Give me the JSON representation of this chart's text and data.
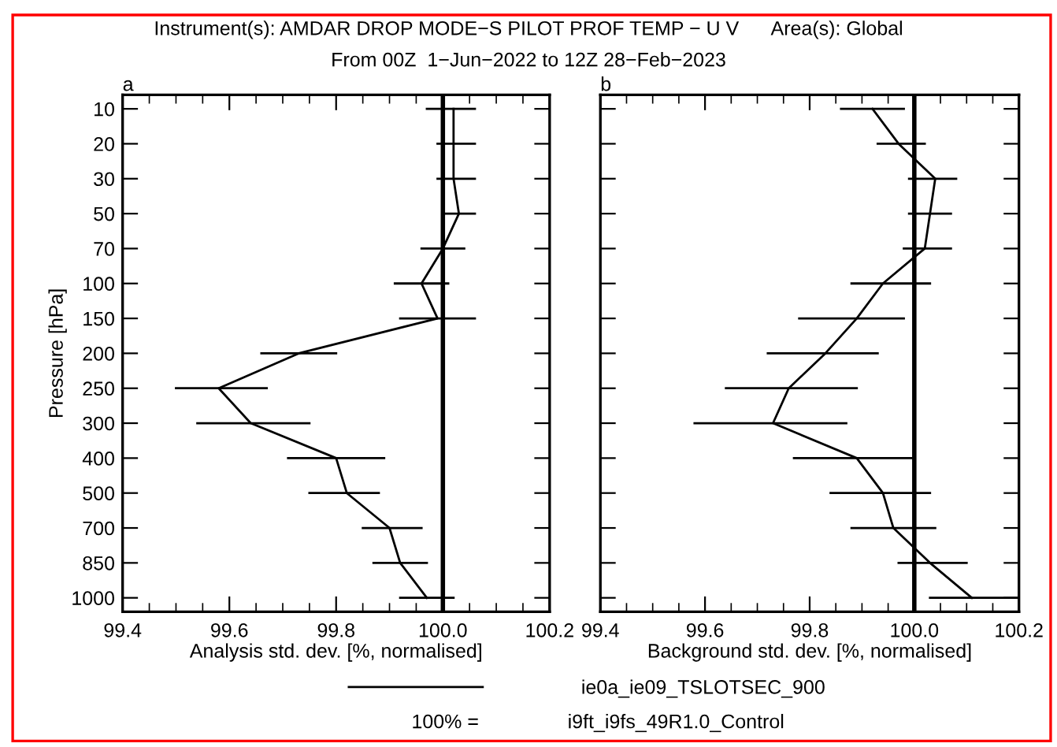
{
  "chart_data": [
    {
      "type": "line",
      "orientation": "horizontal",
      "title": "a",
      "xlabel": "Analysis std. dev. [%, normalised]",
      "ylabel": "Pressure [hPa]",
      "categories": [
        "10",
        "20",
        "30",
        "50",
        "70",
        "100",
        "150",
        "200",
        "250",
        "300",
        "400",
        "500",
        "700",
        "850",
        "1000"
      ],
      "series": [
        {
          "name": "ie0a_ie09_TSLOTSEC_900",
          "color": "#000000",
          "values": [
            100.02,
            100.02,
            100.02,
            100.03,
            100.0,
            99.96,
            99.99,
            99.73,
            99.58,
            99.64,
            99.8,
            99.82,
            99.9,
            99.92,
            99.97
          ],
          "errors": [
            [
              99.97,
              100.06
            ],
            [
              99.99,
              100.06
            ],
            [
              99.99,
              100.06
            ],
            [
              100.0,
              100.06
            ],
            [
              99.96,
              100.04
            ],
            [
              99.91,
              100.01
            ],
            [
              99.92,
              100.06
            ],
            [
              99.66,
              99.8
            ],
            [
              99.5,
              99.67
            ],
            [
              99.54,
              99.75
            ],
            [
              99.71,
              99.89
            ],
            [
              99.75,
              99.88
            ],
            [
              99.85,
              99.96
            ],
            [
              99.87,
              99.97
            ],
            [
              99.92,
              100.02
            ]
          ]
        }
      ],
      "xlim": [
        99.4,
        100.2
      ],
      "xticks": [
        {
          "value": 99.4,
          "label": "99.4"
        },
        {
          "value": 99.6,
          "label": "99.6"
        },
        {
          "value": 99.8,
          "label": "99.8"
        },
        {
          "value": 100.0,
          "label": "100.0"
        },
        {
          "value": 100.2,
          "label": "100.2"
        }
      ],
      "ref_lines": [
        {
          "axis": "x",
          "value": 100.0,
          "color": "#000000"
        }
      ],
      "marker": "none",
      "line_style": "solid",
      "grid": false,
      "legend": "bottom",
      "annotations": [
        "Instrument(s): AMDAR DROP MODE−S PILOT PROF TEMP − U V      Area(s): Global",
        "From 00Z  1−Jun−2022 to 12Z 28−Feb−2023",
        "100% =",
        "i9ft_i9fs_49R1.0_Control"
      ]
    },
    {
      "type": "line",
      "orientation": "horizontal",
      "title": "b",
      "xlabel": "Background std. dev. [%, normalised]",
      "categories": [
        "10",
        "20",
        "30",
        "50",
        "70",
        "100",
        "150",
        "200",
        "250",
        "300",
        "400",
        "500",
        "700",
        "850",
        "1000"
      ],
      "series": [
        {
          "color": "#000000",
          "values": [
            99.92,
            99.97,
            100.04,
            100.03,
            100.02,
            99.94,
            99.89,
            99.83,
            99.76,
            99.73,
            99.89,
            99.94,
            99.96,
            100.03,
            100.11
          ],
          "errors": [
            [
              99.86,
              99.98
            ],
            [
              99.93,
              100.02
            ],
            [
              99.99,
              100.08
            ],
            [
              99.99,
              100.07
            ],
            [
              99.98,
              100.07
            ],
            [
              99.88,
              100.03
            ],
            [
              99.78,
              99.98
            ],
            [
              99.72,
              99.93
            ],
            [
              99.64,
              99.89
            ],
            [
              99.58,
              99.87
            ],
            [
              99.77,
              100.0
            ],
            [
              99.84,
              100.03
            ],
            [
              99.88,
              100.04
            ],
            [
              99.97,
              100.1
            ],
            [
              100.03,
              100.2
            ]
          ]
        }
      ],
      "xlim": [
        99.4,
        100.2
      ],
      "xticks": [
        {
          "value": 99.4,
          "label": "99.4"
        },
        {
          "value": 99.6,
          "label": "99.6"
        },
        {
          "value": 99.8,
          "label": "99.8"
        },
        {
          "value": 100.0,
          "label": "100.0"
        },
        {
          "value": 100.2,
          "label": "100.2"
        }
      ],
      "ref_lines": [
        {
          "axis": "x",
          "value": 100.0,
          "color": "#000000"
        }
      ],
      "marker": "none",
      "line_style": "solid",
      "grid": false,
      "tick_labels": "x"
    }
  ]
}
